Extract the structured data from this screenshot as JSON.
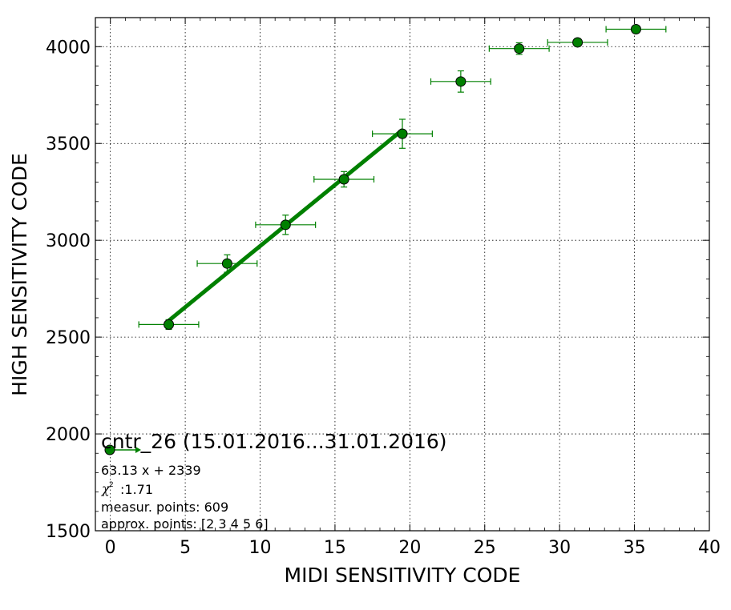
{
  "chart_data": {
    "type": "scatter",
    "xlabel": "MIDI SENSITIVITY CODE",
    "ylabel": "HIGH SENSITIVITY CODE",
    "xlim": [
      -1,
      40
    ],
    "ylim": [
      1500,
      4150
    ],
    "xticks": [
      "0",
      "5",
      "10",
      "15",
      "20",
      "25",
      "30",
      "35",
      "40"
    ],
    "yticks": [
      "1500",
      "2000",
      "2500",
      "3000",
      "3500",
      "4000"
    ],
    "grid": true,
    "legend_position": "lower-left",
    "colors": {
      "series": "#008000",
      "marker_edge": "#000000"
    },
    "series": [
      {
        "name": "cntr_26 (15.01.2016...31.01.2016)",
        "points": [
          {
            "x": 3.9,
            "y": 2565,
            "xerr": 2.0,
            "yerr": 25
          },
          {
            "x": 7.8,
            "y": 2880,
            "xerr": 2.0,
            "yerr": 45
          },
          {
            "x": 11.7,
            "y": 3080,
            "xerr": 2.0,
            "yerr": 50
          },
          {
            "x": 15.6,
            "y": 3315,
            "xerr": 2.0,
            "yerr": 40
          },
          {
            "x": 19.5,
            "y": 3550,
            "xerr": 2.0,
            "yerr": 75
          },
          {
            "x": 23.4,
            "y": 3820,
            "xerr": 2.0,
            "yerr": 55
          },
          {
            "x": 27.3,
            "y": 3990,
            "xerr": 2.0,
            "yerr": 30
          },
          {
            "x": 31.2,
            "y": 4022,
            "xerr": 2.0,
            "yerr": 20
          },
          {
            "x": 35.1,
            "y": 4090,
            "xerr": 2.0,
            "yerr": 15
          }
        ]
      }
    ],
    "fit": {
      "slope": 63.13,
      "intercept": 2339,
      "x_range": [
        3.9,
        19.5
      ]
    },
    "legend_lines": [
      "63.13 x + 2339",
      ":1.71",
      "measur. points: 609",
      "approx. points: [2 3 4 5 6]"
    ],
    "chi_symbol": "χ",
    "chi_exp": "2"
  }
}
